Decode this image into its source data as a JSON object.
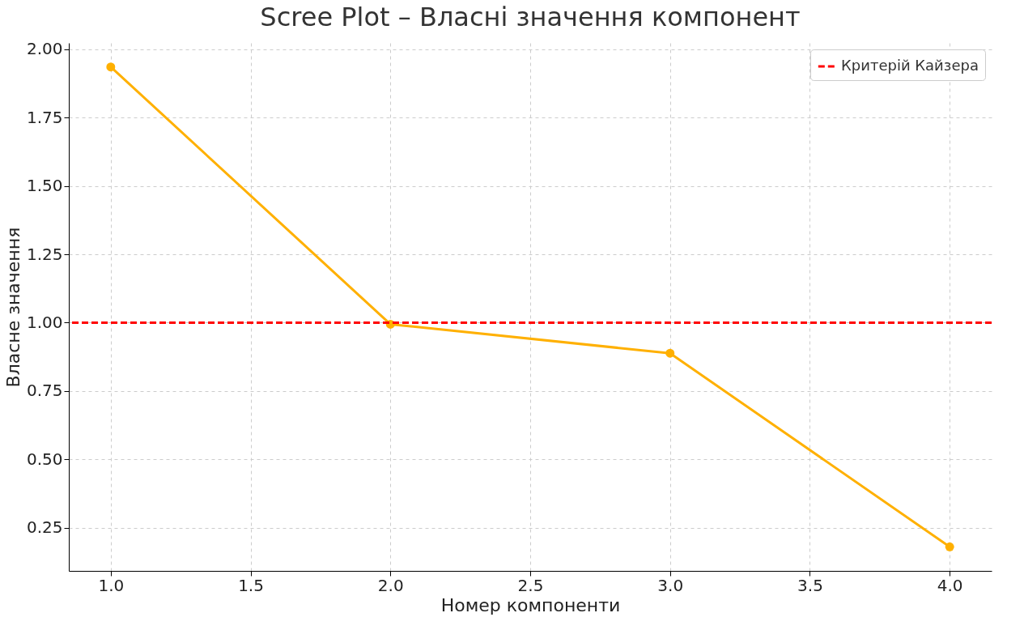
{
  "chart_data": {
    "type": "line",
    "title": "Scree Plot – Власні значення компонент",
    "xlabel": "Номер компоненти",
    "ylabel": "Власне значення",
    "x": [
      1,
      2,
      3,
      4
    ],
    "series": [
      {
        "color": "#ffb000",
        "values": [
          1.935,
          0.994,
          0.888,
          0.18
        ]
      }
    ],
    "xlim": [
      0.85,
      4.15
    ],
    "xticks": [
      {
        "value": 1,
        "label": "1.0"
      },
      {
        "value": 1.5,
        "label": "1.5"
      },
      {
        "value": 2,
        "label": "2.0"
      },
      {
        "value": 2.5,
        "label": "2.5"
      },
      {
        "value": 3,
        "label": "3.0"
      },
      {
        "value": 3.5,
        "label": "3.5"
      },
      {
        "value": 4,
        "label": "4.0"
      }
    ],
    "ylim": [
      0.092,
      2.023
    ],
    "yticks": [
      {
        "value": 0.25,
        "label": "0.25"
      },
      {
        "value": 0.5,
        "label": "0.50"
      },
      {
        "value": 0.75,
        "label": "0.75"
      },
      {
        "value": 1,
        "label": "1.00"
      },
      {
        "value": 1.25,
        "label": "1.25"
      },
      {
        "value": 1.5,
        "label": "1.50"
      },
      {
        "value": 1.75,
        "label": "1.75"
      },
      {
        "value": 2,
        "label": "2.00"
      }
    ],
    "ref_lines": [
      {
        "axis": "y",
        "value": 1,
        "label": "Критерій Кайзера",
        "color": "#ff0000",
        "line_style": "dashed"
      }
    ],
    "grid": true,
    "legend": "top right",
    "marker": "circle",
    "line_style": "solid"
  }
}
